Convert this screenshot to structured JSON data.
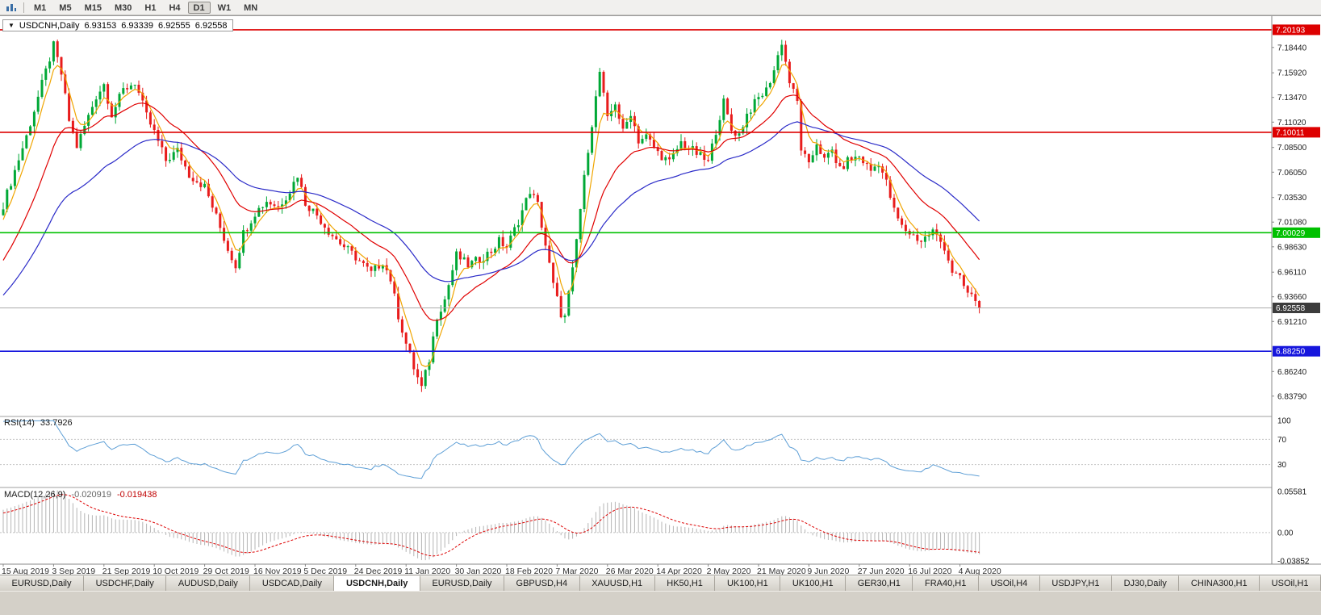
{
  "toolbar": {
    "timeframes": [
      {
        "label": "M1",
        "active": false
      },
      {
        "label": "M5",
        "active": false
      },
      {
        "label": "M15",
        "active": false
      },
      {
        "label": "M30",
        "active": false
      },
      {
        "label": "H1",
        "active": false
      },
      {
        "label": "H4",
        "active": false
      },
      {
        "label": "D1",
        "active": true
      },
      {
        "label": "W1",
        "active": false
      },
      {
        "label": "MN",
        "active": false
      }
    ]
  },
  "chart": {
    "symbol_label": "USDCNH,Daily",
    "one_click_icon": "▼",
    "ohlc": {
      "open": "6.93153",
      "high": "6.93339",
      "low": "6.92555",
      "close": "6.92558"
    }
  },
  "price_scale": {
    "ticks": [
      "7.18440",
      "7.15920",
      "7.13470",
      "7.11020",
      "7.08500",
      "7.06050",
      "7.03530",
      "7.01080",
      "6.98630",
      "6.96110",
      "6.93660",
      "6.91210",
      "6.86240",
      "6.83790"
    ],
    "current": "6.92558",
    "current_color": "#3c3c3c"
  },
  "rsi_panel": {
    "label": "RSI(14)",
    "value": "33.7926",
    "scale": [
      "100",
      "70",
      "30"
    ]
  },
  "macd_panel": {
    "label": "MACD(12,26,9)",
    "value_main": "-0.020919",
    "value_signal": "-0.019438",
    "scale": [
      "0.05581",
      "0.00",
      "-0.03852"
    ]
  },
  "time_axis": {
    "labels": [
      "15 Aug 2019",
      "3 Sep 2019",
      "21 Sep 2019",
      "10 Oct 2019",
      "29 Oct 2019",
      "16 Nov 2019",
      "5 Dec 2019",
      "24 Dec 2019",
      "11 Jan 2020",
      "30 Jan 2020",
      "18 Feb 2020",
      "7 Mar 2020",
      "26 Mar 2020",
      "14 Apr 2020",
      "2 May 2020",
      "21 May 2020",
      "9 Jun 2020",
      "27 Jun 2020",
      "16 Jul 2020",
      "4 Aug 2020"
    ]
  },
  "tabs": [
    {
      "label": "EURUSD,Daily",
      "active": false
    },
    {
      "label": "USDCHF,Daily",
      "active": false
    },
    {
      "label": "AUDUSD,Daily",
      "active": false
    },
    {
      "label": "USDCAD,Daily",
      "active": false
    },
    {
      "label": "USDCNH,Daily",
      "active": true
    },
    {
      "label": "EURUSD,Daily",
      "active": false
    },
    {
      "label": "GBPUSD,H4",
      "active": false
    },
    {
      "label": "XAUUSD,H1",
      "active": false
    },
    {
      "label": "HK50,H1",
      "active": false
    },
    {
      "label": "UK100,H1",
      "active": false
    },
    {
      "label": "UK100,H1",
      "active": false
    },
    {
      "label": "GER30,H1",
      "active": false
    },
    {
      "label": "FRA40,H1",
      "active": false
    },
    {
      "label": "USOil,H4",
      "active": false
    },
    {
      "label": "USDJPY,H1",
      "active": false
    },
    {
      "label": "DJ30,Daily",
      "active": false
    },
    {
      "label": "CHINA300,H1",
      "active": false
    },
    {
      "label": "USOil,H1",
      "active": false
    }
  ],
  "chart_data": {
    "type": "candlestick",
    "symbol": "USDCNH",
    "timeframe": "Daily",
    "title": "USDCNH,Daily 6.93153 6.93339 6.92555 6.92558",
    "price_range": {
      "top": 7.2155,
      "bottom": 6.8185
    },
    "bars_visible": 253,
    "label_step": 13,
    "colors": {
      "up": "#00a836",
      "down": "#e81c1c"
    },
    "current_price": 6.92558,
    "anchors": [
      [
        -25,
        6.88
      ],
      [
        -18,
        6.916
      ],
      [
        -10,
        6.962
      ],
      [
        -4,
        7.002
      ],
      [
        0,
        7.028
      ],
      [
        3,
        7.062
      ],
      [
        6,
        7.096
      ],
      [
        10,
        7.148
      ],
      [
        13,
        7.186
      ],
      [
        15,
        7.158
      ],
      [
        17,
        7.112
      ],
      [
        19,
        7.086
      ],
      [
        21,
        7.106
      ],
      [
        24,
        7.136
      ],
      [
        26,
        7.148
      ],
      [
        28,
        7.118
      ],
      [
        31,
        7.142
      ],
      [
        34,
        7.15
      ],
      [
        37,
        7.116
      ],
      [
        39,
        7.1
      ],
      [
        42,
        7.072
      ],
      [
        45,
        7.082
      ],
      [
        48,
        7.058
      ],
      [
        52,
        7.046
      ],
      [
        55,
        7.016
      ],
      [
        58,
        6.984
      ],
      [
        60,
        6.968
      ],
      [
        62,
        7.0
      ],
      [
        65,
        7.02
      ],
      [
        68,
        7.032
      ],
      [
        71,
        7.026
      ],
      [
        74,
        7.042
      ],
      [
        76,
        7.058
      ],
      [
        78,
        7.03
      ],
      [
        81,
        7.018
      ],
      [
        84,
        7.002
      ],
      [
        87,
        6.99
      ],
      [
        91,
        6.976
      ],
      [
        95,
        6.96
      ],
      [
        98,
        6.972
      ],
      [
        100,
        6.954
      ],
      [
        102,
        6.918
      ],
      [
        104,
        6.89
      ],
      [
        106,
        6.866
      ],
      [
        108,
        6.846
      ],
      [
        110,
        6.874
      ],
      [
        112,
        6.918
      ],
      [
        114,
        6.934
      ],
      [
        117,
        6.978
      ],
      [
        120,
        6.968
      ],
      [
        123,
        6.974
      ],
      [
        126,
        6.982
      ],
      [
        128,
        6.992
      ],
      [
        130,
        6.986
      ],
      [
        133,
        7.012
      ],
      [
        136,
        7.042
      ],
      [
        138,
        7.028
      ],
      [
        140,
        6.988
      ],
      [
        142,
        6.948
      ],
      [
        144,
        6.92
      ],
      [
        145,
        6.916
      ],
      [
        147,
        6.962
      ],
      [
        149,
        7.024
      ],
      [
        151,
        7.084
      ],
      [
        153,
        7.134
      ],
      [
        154,
        7.16
      ],
      [
        156,
        7.112
      ],
      [
        158,
        7.13
      ],
      [
        160,
        7.1
      ],
      [
        162,
        7.12
      ],
      [
        164,
        7.092
      ],
      [
        166,
        7.096
      ],
      [
        169,
        7.08
      ],
      [
        172,
        7.07
      ],
      [
        175,
        7.09
      ],
      [
        178,
        7.082
      ],
      [
        182,
        7.07
      ],
      [
        184,
        7.102
      ],
      [
        186,
        7.13
      ],
      [
        188,
        7.102
      ],
      [
        190,
        7.098
      ],
      [
        192,
        7.118
      ],
      [
        195,
        7.134
      ],
      [
        197,
        7.142
      ],
      [
        199,
        7.162
      ],
      [
        201,
        7.19
      ],
      [
        203,
        7.15
      ],
      [
        205,
        7.13
      ],
      [
        206,
        7.084
      ],
      [
        208,
        7.066
      ],
      [
        210,
        7.09
      ],
      [
        212,
        7.072
      ],
      [
        214,
        7.082
      ],
      [
        216,
        7.062
      ],
      [
        218,
        7.072
      ],
      [
        221,
        7.076
      ],
      [
        224,
        7.062
      ],
      [
        226,
        7.07
      ],
      [
        228,
        7.05
      ],
      [
        230,
        7.022
      ],
      [
        232,
        7.006
      ],
      [
        234,
        7.0
      ],
      [
        237,
        6.992
      ],
      [
        240,
        7.002
      ],
      [
        243,
        6.986
      ],
      [
        245,
        6.962
      ],
      [
        247,
        6.954
      ],
      [
        249,
        6.94
      ],
      [
        251,
        6.934
      ],
      [
        252,
        6.9256
      ]
    ],
    "hlines": [
      {
        "price": 7.20193,
        "color": "#dd0000",
        "label": "7.20193"
      },
      {
        "price": 7.10011,
        "color": "#dd0000",
        "label": "7.10011"
      },
      {
        "price": 7.00029,
        "color": "#00c000",
        "label": "7.00029"
      },
      {
        "price": 6.8825,
        "color": "#1616dd",
        "label": "6.88250"
      }
    ],
    "ma": [
      {
        "period": 5,
        "type": "ema",
        "color": "#f0a500"
      },
      {
        "period": 20,
        "type": "ema",
        "color": "#e00000"
      },
      {
        "period": 45,
        "type": "ema",
        "color": "#2b2bc8"
      }
    ],
    "rsi": {
      "period": 14,
      "current": 33.7926,
      "levels": [
        70,
        30
      ],
      "range": [
        0,
        100
      ],
      "color": "#5e9fd6"
    },
    "macd": {
      "fast": 12,
      "slow": 26,
      "signal": 9,
      "main_current": -0.020919,
      "signal_current": -0.019438,
      "range": [
        0.05581,
        -0.03852
      ]
    }
  }
}
